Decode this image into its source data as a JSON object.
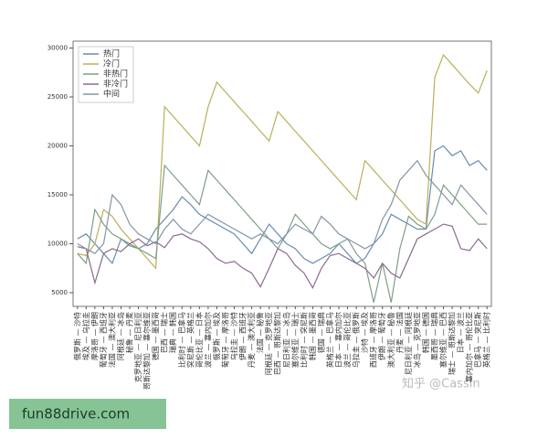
{
  "chart_data": {
    "type": "line",
    "categories": [
      "俄罗斯 — 沙特",
      "埃及 — 乌拉圭",
      "摩洛哥 — 伊朗",
      "葡萄牙 — 西班牙",
      "法国 — 澳大利亚",
      "阿根廷 — 冰岛",
      "秘鲁 — 丹麦",
      "克罗地亚 — 尼日利亚",
      "哥斯达黎加 — 塞尔维亚",
      "德国 — 墨西哥",
      "巴西 — 瑞士",
      "瑞典 — 韩国",
      "比利时 — 巴拿马",
      "突尼斯 — 英格兰",
      "哥伦比亚 — 日本",
      "波兰 — 塞内加尔",
      "俄罗斯 — 埃及",
      "葡萄牙 — 摩洛哥",
      "乌拉圭 — 沙特",
      "伊朗 — 西班牙",
      "丹麦 — 澳大利亚",
      "法国 — 秘鲁",
      "阿根廷 — 克罗地亚",
      "巴西 — 哥斯达黎加",
      "尼日利亚 — 冰岛",
      "塞尔维亚 — 瑞士",
      "比利时 — 突尼斯",
      "韩国 — 墨西哥",
      "德国 — 瑞典",
      "英格兰 — 巴拿马",
      "日本 — 塞内加尔",
      "波兰 — 哥伦比亚",
      "乌拉圭 — 俄罗斯",
      "沙特 — 埃及",
      "西班牙 — 摩洛哥",
      "伊朗 — 葡萄牙",
      "澳大利亚 — 秘鲁",
      "丹麦 — 法国",
      "尼日利亚 — 阿根廷",
      "冰岛 — 克罗地亚",
      "韩国 — 德国",
      "墨西哥 — 瑞典",
      "塞尔维亚 — 巴西",
      "瑞士 — 哥斯达黎加",
      "日本 — 波兰",
      "塞内加尔 — 哥伦比亚",
      "巴拿马 — 突尼斯",
      "英格兰 — 比利时"
    ],
    "series": [
      {
        "name": "热门",
        "color": "#6a8caf",
        "values": [
          10500,
          11000,
          10000,
          9000,
          8000,
          10500,
          9800,
          9500,
          10000,
          11500,
          12500,
          13500,
          14800,
          14000,
          13000,
          12500,
          12000,
          11500,
          11000,
          10000,
          9000,
          10500,
          12000,
          11000,
          10000,
          9500,
          8500,
          8000,
          8500,
          9000,
          10000,
          9000,
          8000,
          8500,
          10000,
          11000,
          13000,
          12500,
          12000,
          11500,
          11500,
          19500,
          20000,
          19000,
          19500,
          18000,
          18500,
          17500
        ]
      },
      {
        "name": "冷门",
        "color": "#b8b05a",
        "values": [
          9000,
          8800,
          10000,
          13500,
          12800,
          11500,
          10500,
          9500,
          8500,
          7500,
          24000,
          23000,
          22000,
          21000,
          20000,
          24000,
          26500,
          25500,
          24500,
          23500,
          22500,
          21500,
          20500,
          23500,
          22500,
          21500,
          20500,
          19500,
          18500,
          17500,
          16500,
          15500,
          14500,
          18500,
          17500,
          16500,
          15500,
          14500,
          13500,
          12500,
          12000,
          27000,
          29300,
          28300,
          27300,
          26300,
          25400,
          27700
        ]
      },
      {
        "name": "非热门",
        "color": "#7f9f86",
        "values": [
          9000,
          8000,
          13500,
          12000,
          11000,
          10500,
          10000,
          9500,
          9000,
          8500,
          18000,
          17000,
          16000,
          15000,
          14000,
          17500,
          16500,
          15500,
          14500,
          13500,
          12500,
          11500,
          10500,
          9500,
          11000,
          13000,
          12000,
          11000,
          10000,
          9500,
          10000,
          10500,
          9000,
          8000,
          4000,
          8000,
          4000,
          9500,
          12800,
          12000,
          11500,
          13000,
          16000,
          15000,
          14000,
          13000,
          12000,
          12000
        ]
      },
      {
        "name": "非冷门",
        "color": "#8a6a8f",
        "values": [
          9700,
          9500,
          6000,
          9000,
          9500,
          9200,
          10000,
          10500,
          9800,
          10200,
          9600,
          10800,
          11000,
          10500,
          10200,
          9500,
          8500,
          8000,
          8200,
          7500,
          7000,
          5600,
          7500,
          9500,
          9000,
          7800,
          7000,
          5500,
          7500,
          8800,
          9000,
          8500,
          8000,
          7500,
          6500,
          8000,
          7000,
          6500,
          8500,
          10500,
          11000,
          11500,
          12000,
          11800,
          9500,
          9300,
          10500,
          9500
        ]
      },
      {
        "name": "中间",
        "color": "#8495a8",
        "values": [
          10000,
          9500,
          9000,
          10000,
          15000,
          14000,
          12000,
          11000,
          10500,
          10000,
          11500,
          12500,
          11500,
          11000,
          12000,
          13000,
          12500,
          12000,
          11500,
          11000,
          10500,
          11000,
          10500,
          10000,
          11000,
          12000,
          11500,
          11000,
          12800,
          12000,
          11000,
          10500,
          10000,
          9500,
          10000,
          12500,
          14000,
          16500,
          17500,
          18500,
          17000,
          16000,
          15000,
          14000,
          16000,
          15000,
          14000,
          13000
        ]
      }
    ],
    "ylim": [
      3600,
      30700
    ],
    "yticks": [
      5000,
      10000,
      15000,
      20000,
      25000,
      30000
    ],
    "legend": "upper left",
    "grid": false
  },
  "watermarks": [
    "知乎 @Cassin",
    "fun88drive.com"
  ]
}
